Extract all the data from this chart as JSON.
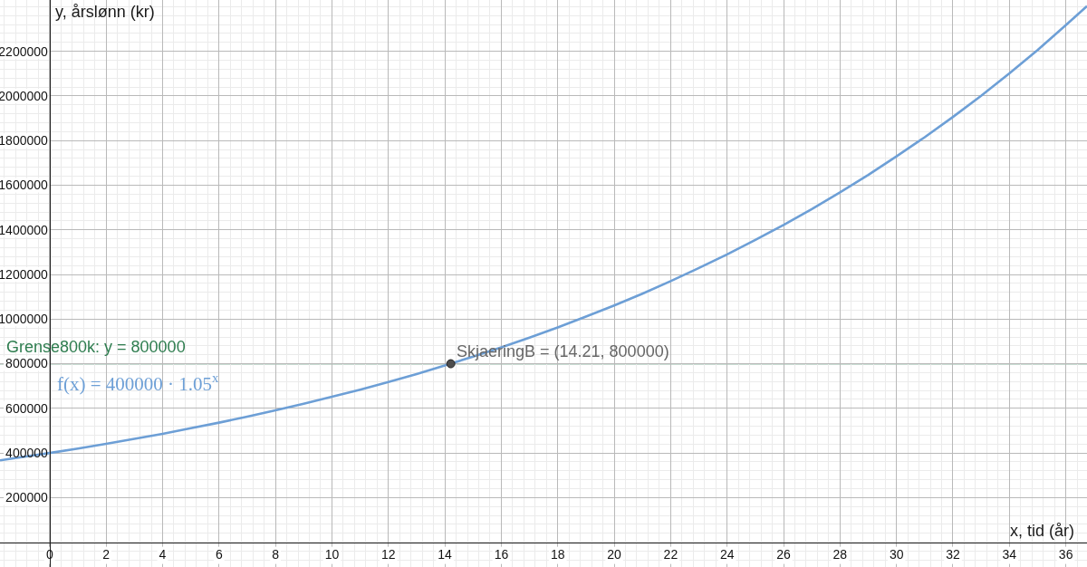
{
  "chart_data": {
    "type": "line",
    "xlabel": "x, tid (år)",
    "ylabel": "y, årslønn (kr)",
    "series": [
      {
        "name": "f(x) = 400000 · 1.05$^{x}$",
        "color": "#6d9fd6",
        "marker": "none",
        "x": [
          -1.76,
          -1,
          0,
          1,
          2,
          3,
          4,
          5,
          6,
          7,
          8,
          9,
          10,
          11,
          12,
          13,
          14,
          15,
          16,
          17,
          18,
          19,
          20,
          21,
          22,
          23,
          24,
          25,
          26,
          27,
          28,
          29,
          30,
          31,
          32,
          33,
          34,
          35,
          36,
          36.75
        ],
        "values": [
          367000,
          381000,
          400000,
          420000,
          441000,
          463000,
          486000,
          511000,
          536000,
          563000,
          591000,
          621000,
          652000,
          684000,
          718000,
          754000,
          792000,
          832000,
          873000,
          917000,
          963000,
          1011000,
          1061000,
          1114000,
          1170000,
          1229000,
          1290000,
          1355000,
          1422000,
          1493000,
          1568000,
          1646000,
          1729000,
          1815000,
          1906000,
          2001000,
          2101000,
          2206000,
          2317000,
          2403000
        ]
      },
      {
        "type": "scatter",
        "color": "#4d4d4d",
        "marker": "circle",
        "x": [
          14.21
        ],
        "values": [
          800000
        ]
      }
    ],
    "ref_lines": [
      {
        "axis": "y",
        "value": 800000,
        "label": "Grense800k: y = 800000",
        "color": "#2e7d4f"
      }
    ],
    "annotations": [
      {
        "text": "SkjaeringB = (14.21, 800000)",
        "x": 14.21,
        "y": 800000
      }
    ],
    "xlim": [
      -1.76,
      36.75
    ],
    "ylim": [
      -111000,
      2430000
    ],
    "xticks": [
      0,
      2,
      4,
      6,
      8,
      10,
      12,
      14,
      16,
      18,
      20,
      22,
      24,
      26,
      28,
      30,
      32,
      34,
      36
    ],
    "yticks": [
      200000,
      400000,
      600000,
      800000,
      1000000,
      1200000,
      1400000,
      1600000,
      1800000,
      2000000,
      2200000
    ],
    "grid": true,
    "legend": false
  }
}
